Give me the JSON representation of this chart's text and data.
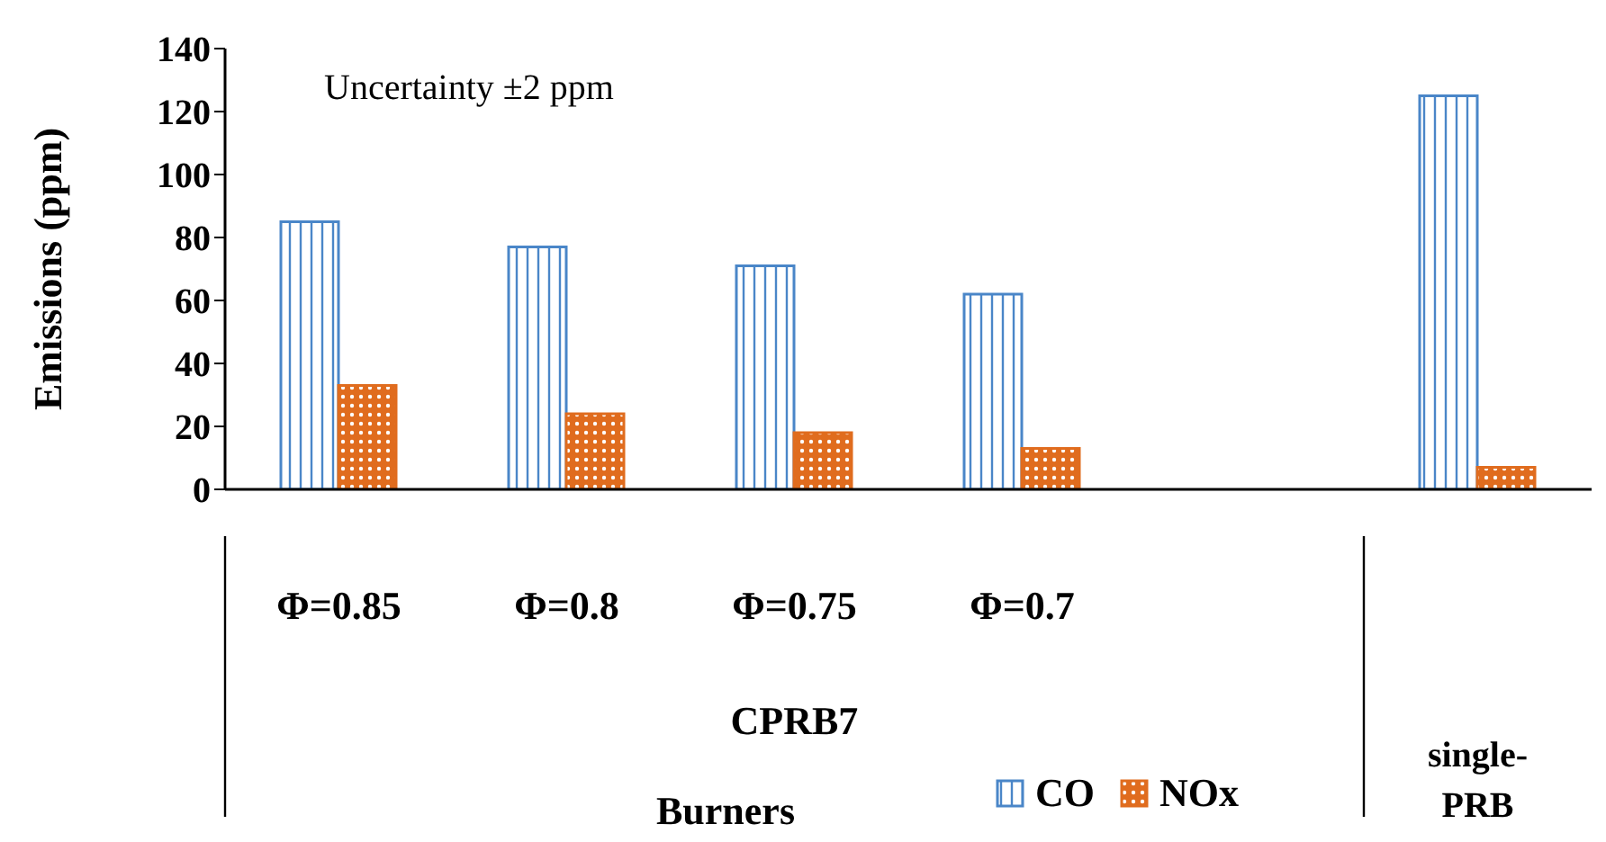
{
  "chart_data": {
    "type": "bar",
    "xlabel": "Burners",
    "ylabel": "Emissions (ppm)",
    "categories": [
      "Φ=0.85",
      "Φ=0.8",
      "Φ=0.75",
      "Φ=0.7",
      null,
      null
    ],
    "series": [
      {
        "name": "CO",
        "color": "#4a86c8",
        "values": [
          85,
          77,
          71,
          62,
          null,
          125
        ]
      },
      {
        "name": "NOx",
        "color": "#e06c1e",
        "values": [
          33,
          24,
          18,
          13,
          null,
          7
        ]
      }
    ],
    "ylim": [
      0,
      140
    ],
    "yticks": [
      0,
      20,
      40,
      60,
      80,
      100,
      120,
      140
    ],
    "grid": false,
    "legend": "bottom",
    "annotations": [
      "Uncertainty ±2 ppm",
      "CPRB7",
      "single-PRB"
    ]
  }
}
